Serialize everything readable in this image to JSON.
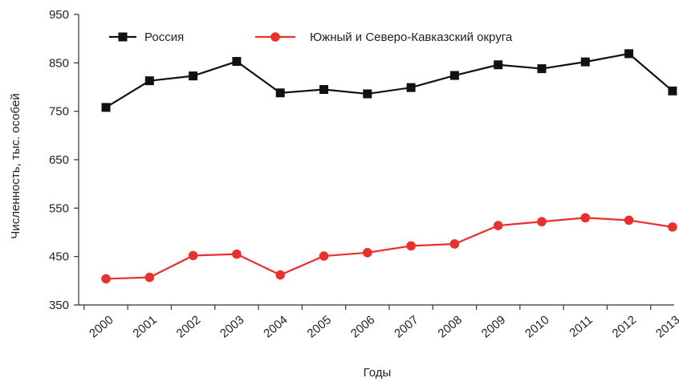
{
  "chart_data": {
    "type": "line",
    "title": "",
    "xlabel": "Годы",
    "ylabel": "Численность, тыс. особей",
    "ylim": [
      350,
      950
    ],
    "yticks": [
      350,
      450,
      550,
      650,
      750,
      850,
      950
    ],
    "categories": [
      "2000",
      "2001",
      "2002",
      "2003",
      "2004",
      "2005",
      "2006",
      "2007",
      "2008",
      "2009",
      "2010",
      "2011",
      "2012",
      "2013"
    ],
    "grid": false,
    "legend_position": "top",
    "series": [
      {
        "name": "Россия",
        "color": "#111111",
        "marker": "square",
        "values": [
          758,
          813,
          823,
          853,
          788,
          795,
          786,
          799,
          824,
          846,
          838,
          852,
          869,
          792
        ]
      },
      {
        "name": "Южный и Северо-Кавказский округа",
        "color": "#e8302c",
        "marker": "circle",
        "values": [
          404,
          407,
          452,
          455,
          412,
          451,
          458,
          472,
          476,
          514,
          522,
          530,
          525,
          511
        ]
      }
    ]
  }
}
